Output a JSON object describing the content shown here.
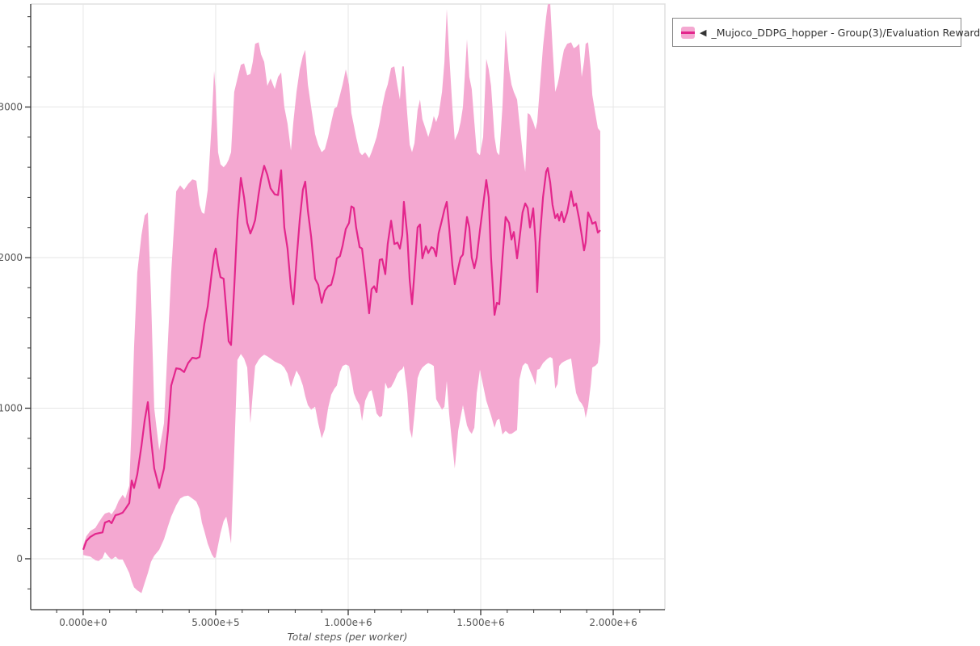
{
  "colors": {
    "line": "#e3268c",
    "band": "#f4a8d1",
    "grid": "#e6e6e6",
    "plot_border": "#e0e0e0",
    "axis": "#333333",
    "tick_label": "#555555",
    "axis_title": "#555555",
    "legend_border": "#888888",
    "legend_text": "#333333"
  },
  "legend": {
    "collapse_icon": "◀",
    "label": "_Mujoco_DDPG_hopper - Group(3)/Evaluation Reward"
  },
  "chart_data": {
    "type": "line",
    "title": "",
    "xlabel": "Total steps (per worker)",
    "ylabel": "",
    "grid": true,
    "legend_position": "top-right",
    "xlim": [
      -198000,
      2195000
    ],
    "ylim": [
      -338,
      3684
    ],
    "x_ticks": {
      "values": [
        0,
        500000,
        1000000,
        1500000,
        2000000
      ],
      "labels": [
        "0.000e+0",
        "5.000e+5",
        "1.000e+6",
        "1.500e+6",
        "2.000e+6"
      ],
      "minor_step": 100000,
      "minor_min": -100000,
      "minor_max": 2200000
    },
    "y_ticks": {
      "values": [
        0,
        1000,
        2000,
        3000
      ],
      "labels": [
        "0",
        "1000",
        "2000",
        "3000"
      ],
      "minor_step": 200,
      "minor_min": -200,
      "minor_max": 3600
    },
    "series": [
      {
        "name": "_Mujoco_DDPG_hopper - Group(3)/Evaluation Reward",
        "line_color": "#e3268c",
        "band_color": "#f4a8d1",
        "steps": [
          0,
          12000,
          27000,
          46000,
          58000,
          73000,
          82000,
          98000,
          107000,
          122000,
          134000,
          149000,
          159000,
          174000,
          183000,
          192000,
          204000,
          220000,
          232000,
          244000,
          256000,
          268000,
          287000,
          305000,
          320000,
          332000,
          351000,
          366000,
          381000,
          396000,
          412000,
          427000,
          439000,
          448000,
          457000,
          470000,
          485000,
          494000,
          500000,
          509000,
          518000,
          530000,
          540000,
          549000,
          558000,
          570000,
          582000,
          595000,
          607000,
          619000,
          631000,
          640000,
          649000,
          662000,
          671000,
          683000,
          695000,
          707000,
          723000,
          735000,
          747000,
          759000,
          771000,
          784000,
          793000,
          805000,
          817000,
          829000,
          838000,
          848000,
          860000,
          875000,
          887000,
          900000,
          912000,
          924000,
          936000,
          948000,
          957000,
          969000,
          979000,
          991000,
          1003000,
          1012000,
          1021000,
          1030000,
          1043000,
          1052000,
          1064000,
          1079000,
          1088000,
          1098000,
          1107000,
          1119000,
          1128000,
          1140000,
          1149000,
          1162000,
          1174000,
          1186000,
          1195000,
          1204000,
          1210000,
          1223000,
          1232000,
          1241000,
          1250000,
          1262000,
          1271000,
          1280000,
          1293000,
          1302000,
          1314000,
          1323000,
          1332000,
          1341000,
          1354000,
          1363000,
          1372000,
          1381000,
          1393000,
          1402000,
          1415000,
          1424000,
          1433000,
          1448000,
          1457000,
          1466000,
          1476000,
          1485000,
          1497000,
          1509000,
          1521000,
          1530000,
          1539000,
          1552000,
          1561000,
          1570000,
          1582000,
          1594000,
          1607000,
          1616000,
          1625000,
          1637000,
          1646000,
          1658000,
          1668000,
          1677000,
          1686000,
          1698000,
          1707000,
          1713000,
          1722000,
          1735000,
          1747000,
          1753000,
          1762000,
          1771000,
          1781000,
          1790000,
          1796000,
          1805000,
          1814000,
          1826000,
          1841000,
          1851000,
          1860000,
          1872000,
          1881000,
          1890000,
          1896000,
          1905000,
          1915000,
          1921000,
          1933000,
          1942000,
          1951000
        ],
        "mean": [
          60,
          118,
          145,
          165,
          170,
          175,
          240,
          252,
          236,
          290,
          295,
          306,
          330,
          370,
          520,
          470,
          560,
          750,
          920,
          1040,
          800,
          600,
          470,
          600,
          850,
          1150,
          1265,
          1260,
          1240,
          1300,
          1335,
          1330,
          1340,
          1440,
          1560,
          1675,
          1900,
          2020,
          2060,
          1950,
          1870,
          1860,
          1650,
          1445,
          1420,
          1800,
          2250,
          2530,
          2400,
          2230,
          2160,
          2200,
          2250,
          2420,
          2520,
          2610,
          2550,
          2460,
          2420,
          2415,
          2580,
          2200,
          2060,
          1800,
          1690,
          1980,
          2250,
          2450,
          2505,
          2310,
          2140,
          1860,
          1820,
          1700,
          1780,
          1810,
          1820,
          1900,
          1995,
          2010,
          2080,
          2190,
          2230,
          2340,
          2330,
          2200,
          2070,
          2060,
          1880,
          1630,
          1790,
          1810,
          1770,
          1985,
          1990,
          1890,
          2090,
          2245,
          2090,
          2100,
          2060,
          2150,
          2370,
          2150,
          1850,
          1690,
          1900,
          2200,
          2220,
          1995,
          2075,
          2030,
          2070,
          2060,
          2010,
          2160,
          2250,
          2320,
          2370,
          2200,
          1950,
          1823,
          1930,
          2000,
          2020,
          2270,
          2200,
          2000,
          1930,
          2000,
          2180,
          2350,
          2515,
          2400,
          2000,
          1620,
          1700,
          1690,
          2000,
          2270,
          2230,
          2120,
          2170,
          1995,
          2120,
          2300,
          2360,
          2330,
          2200,
          2327,
          2100,
          1770,
          2100,
          2400,
          2570,
          2595,
          2500,
          2350,
          2263,
          2289,
          2246,
          2305,
          2236,
          2300,
          2440,
          2343,
          2359,
          2252,
          2150,
          2048,
          2100,
          2300,
          2260,
          2225,
          2236,
          2166,
          2182
        ],
        "lower": [
          25,
          20,
          15,
          -10,
          -15,
          5,
          45,
          10,
          -5,
          15,
          -5,
          -5,
          -40,
          -95,
          -150,
          -190,
          -210,
          -228,
          -160,
          -95,
          -20,
          20,
          60,
          130,
          215,
          280,
          355,
          400,
          415,
          420,
          400,
          380,
          330,
          240,
          185,
          100,
          30,
          5,
          10,
          90,
          170,
          250,
          280,
          200,
          100,
          700,
          1320,
          1360,
          1330,
          1270,
          900,
          1100,
          1280,
          1320,
          1340,
          1355,
          1345,
          1330,
          1310,
          1300,
          1290,
          1270,
          1230,
          1140,
          1190,
          1250,
          1210,
          1150,
          1080,
          1020,
          990,
          1010,
          900,
          800,
          860,
          1000,
          1090,
          1130,
          1150,
          1240,
          1280,
          1290,
          1280,
          1200,
          1100,
          1060,
          1020,
          915,
          1050,
          1110,
          1120,
          1050,
          965,
          940,
          950,
          1170,
          1130,
          1140,
          1180,
          1230,
          1250,
          1260,
          1280,
          1100,
          860,
          800,
          960,
          1200,
          1245,
          1270,
          1290,
          1300,
          1290,
          1280,
          1060,
          1030,
          990,
          1010,
          1180,
          960,
          750,
          600,
          850,
          940,
          1020,
          885,
          850,
          830,
          870,
          1100,
          1255,
          1150,
          1050,
          1000,
          950,
          870,
          920,
          930,
          825,
          850,
          830,
          830,
          840,
          855,
          1190,
          1280,
          1300,
          1290,
          1250,
          1200,
          1153,
          1255,
          1260,
          1300,
          1320,
          1330,
          1340,
          1330,
          1130,
          1160,
          1280,
          1300,
          1310,
          1320,
          1330,
          1200,
          1100,
          1050,
          1030,
          1000,
          935,
          1010,
          1150,
          1270,
          1282,
          1300,
          1440
        ],
        "upper": [
          90,
          150,
          185,
          205,
          240,
          280,
          300,
          310,
          295,
          335,
          385,
          425,
          400,
          485,
          900,
          1400,
          1900,
          2150,
          2280,
          2300,
          1750,
          1000,
          720,
          900,
          1450,
          1900,
          2440,
          2480,
          2450,
          2490,
          2520,
          2510,
          2350,
          2300,
          2290,
          2450,
          2900,
          3240,
          3100,
          2700,
          2620,
          2600,
          2620,
          2650,
          2700,
          3100,
          3190,
          3280,
          3290,
          3210,
          3220,
          3300,
          3420,
          3430,
          3350,
          3300,
          3140,
          3190,
          3120,
          3200,
          3230,
          3000,
          2890,
          2710,
          2900,
          3100,
          3250,
          3340,
          3380,
          3150,
          3000,
          2820,
          2750,
          2700,
          2720,
          2800,
          2900,
          2990,
          3000,
          3080,
          3150,
          3250,
          3150,
          2960,
          2880,
          2800,
          2700,
          2680,
          2700,
          2660,
          2700,
          2750,
          2800,
          2900,
          3000,
          3100,
          3150,
          3260,
          3270,
          3140,
          3050,
          3270,
          3270,
          2950,
          2750,
          2700,
          2760,
          2980,
          3050,
          2920,
          2850,
          2800,
          2870,
          2940,
          2900,
          2950,
          3100,
          3300,
          3650,
          3350,
          3000,
          2780,
          2830,
          2900,
          3000,
          3450,
          3200,
          3120,
          2900,
          2700,
          2680,
          2800,
          3320,
          3250,
          3140,
          2800,
          2700,
          2680,
          3000,
          3510,
          3250,
          3150,
          3100,
          3050,
          2900,
          2700,
          2570,
          2960,
          2950,
          2900,
          2850,
          2900,
          3100,
          3400,
          3600,
          3680,
          3690,
          3400,
          3100,
          3150,
          3200,
          3300,
          3380,
          3420,
          3430,
          3390,
          3400,
          3420,
          3200,
          3300,
          3420,
          3430,
          3250,
          3080,
          2950,
          2860,
          2840
        ]
      }
    ]
  }
}
